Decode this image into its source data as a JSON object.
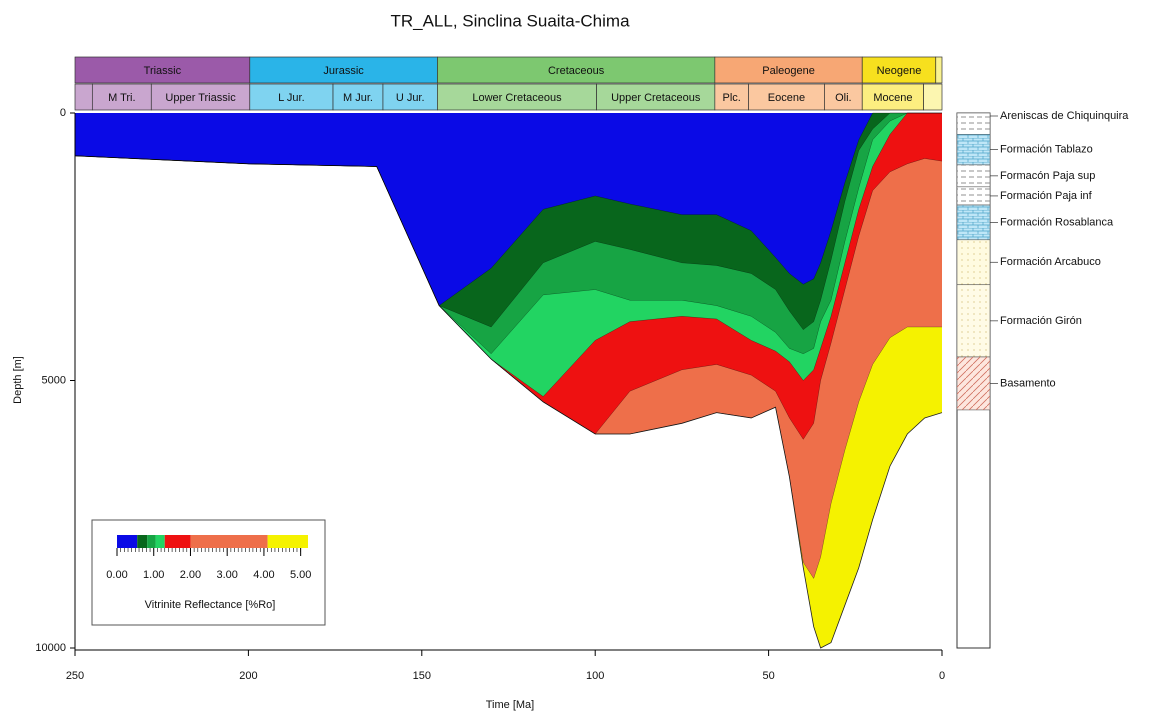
{
  "chart_data": {
    "type": "burial-history",
    "title": "TR_ALL, Sinclina Suaita-Chima",
    "xlabel": "Time [Ma]",
    "ylabel": "Depth [m]",
    "xlim": [
      250,
      0
    ],
    "ylim": [
      0,
      10000
    ],
    "xticks": [
      250,
      200,
      150,
      100,
      50,
      0
    ],
    "yticks": [
      0,
      5000,
      10000
    ],
    "x": [
      250,
      200,
      163,
      145,
      130,
      115,
      100,
      90,
      75,
      65,
      55,
      48,
      44,
      40,
      37,
      35,
      32,
      28,
      24,
      20,
      15,
      10,
      5,
      0
    ],
    "basement": [
      800,
      950,
      1000,
      3600,
      4600,
      5400,
      6000,
      6000,
      5800,
      5600,
      5700,
      5500,
      6800,
      8500,
      9600,
      10000,
      9900,
      9200,
      8500,
      7600,
      6600,
      6000,
      5700,
      5600
    ],
    "zones": [
      {
        "color": "#0a0ae6",
        "top": [
          0,
          0,
          0,
          0,
          0,
          0,
          0,
          0,
          0,
          0,
          0,
          0,
          0,
          0,
          0,
          0,
          0,
          0,
          0,
          0,
          0,
          0,
          0,
          0
        ]
      },
      {
        "color": "#08661c",
        "top": [
          800,
          950,
          1000,
          3600,
          2900,
          1800,
          1550,
          1700,
          1900,
          1900,
          2200,
          2700,
          3000,
          3200,
          3100,
          2800,
          2200,
          1300,
          500,
          0,
          0,
          0,
          0,
          0
        ]
      },
      {
        "color": "#17a444",
        "top": [
          800,
          950,
          1000,
          3600,
          4000,
          2800,
          2400,
          2550,
          2800,
          2850,
          3000,
          3300,
          3700,
          4050,
          3900,
          3500,
          2750,
          1650,
          700,
          300,
          0,
          0,
          0,
          0
        ]
      },
      {
        "color": "#22d462",
        "top": [
          800,
          950,
          1000,
          3600,
          4500,
          3400,
          3300,
          3500,
          3500,
          3600,
          3800,
          4100,
          4400,
          4500,
          4400,
          3900,
          3500,
          2400,
          1400,
          500,
          150,
          0,
          0,
          0
        ]
      },
      {
        "color": "#ee1111",
        "top": [
          800,
          950,
          1000,
          3600,
          4600,
          5300,
          4250,
          3900,
          3800,
          3850,
          4250,
          4450,
          4650,
          5000,
          4800,
          4400,
          3800,
          2800,
          1800,
          1000,
          400,
          0,
          0,
          0
        ]
      },
      {
        "color": "#ee6f4a",
        "top": [
          800,
          950,
          1000,
          3600,
          4600,
          5400,
          6000,
          5200,
          4800,
          4700,
          4900,
          5200,
          5700,
          6100,
          5800,
          5000,
          4300,
          3300,
          2300,
          1450,
          1100,
          950,
          850,
          900
        ]
      },
      {
        "color": "#f5f200",
        "top": [
          800,
          950,
          1000,
          3600,
          4600,
          5400,
          6000,
          6000,
          5800,
          5600,
          5700,
          5500,
          6800,
          8400,
          8700,
          8300,
          7300,
          6300,
          5400,
          4700,
          4200,
          4000,
          4000,
          4000
        ]
      }
    ],
    "colorbar": {
      "label": "Vitrinite Reflectance [%Ro]",
      "bins": [
        0,
        0.55,
        0.82,
        1.05,
        1.3,
        2.0,
        4.1,
        5.2
      ],
      "ticks": [
        {
          "value": 0,
          "label": "0.00"
        },
        {
          "value": 1,
          "label": "1.00"
        },
        {
          "value": 2,
          "label": "2.00"
        },
        {
          "value": 3,
          "label": "3.00"
        },
        {
          "value": 4,
          "label": "4.00"
        },
        {
          "value": 5,
          "label": "5.00"
        }
      ]
    },
    "timescale": {
      "periods": [
        {
          "name": "Triassic",
          "start": 250,
          "end": 199.6,
          "color": "#9b5aa9"
        },
        {
          "name": "Jurassic",
          "start": 199.6,
          "end": 145.5,
          "color": "#2ab4e8"
        },
        {
          "name": "Cretaceous",
          "start": 145.5,
          "end": 65.5,
          "color": "#7dc870"
        },
        {
          "name": "Paleogene",
          "start": 65.5,
          "end": 23,
          "color": "#f7a774"
        },
        {
          "name": "Neogene",
          "start": 23,
          "end": 1.8,
          "color": "#f7e01e"
        },
        {
          "name": null,
          "start": 1.8,
          "end": 0,
          "color": "#f9f290"
        }
      ],
      "epochs": [
        {
          "name": null,
          "start": 250,
          "end": 245,
          "color": "#c9a6cf"
        },
        {
          "name": "M Tri.",
          "start": 245,
          "end": 228,
          "color": "#c9a6cf"
        },
        {
          "name": "Upper Triassic",
          "start": 228,
          "end": 199.6,
          "color": "#c9a6cf"
        },
        {
          "name": "L Jur.",
          "start": 199.6,
          "end": 175.6,
          "color": "#7fd3f0"
        },
        {
          "name": "M Jur.",
          "start": 175.6,
          "end": 161.2,
          "color": "#7fd3f0"
        },
        {
          "name": "U Jur.",
          "start": 161.2,
          "end": 145.5,
          "color": "#7fd3f0"
        },
        {
          "name": "Lower Cretaceous",
          "start": 145.5,
          "end": 99.6,
          "color": "#a6d89a"
        },
        {
          "name": "Upper Cretaceous",
          "start": 99.6,
          "end": 65.5,
          "color": "#a6d89a"
        },
        {
          "name": "Plc.",
          "start": 65.5,
          "end": 55.8,
          "color": "#fbc8a0"
        },
        {
          "name": "Eocene",
          "start": 55.8,
          "end": 33.9,
          "color": "#fbc8a0"
        },
        {
          "name": "Oli.",
          "start": 33.9,
          "end": 23,
          "color": "#fbc8a0"
        },
        {
          "name": "Mocene",
          "start": 23,
          "end": 5.3,
          "color": "#fcee80"
        },
        {
          "name": null,
          "start": 5.3,
          "end": 0,
          "color": "#fcf6b0"
        }
      ]
    },
    "formations": [
      {
        "name": "Areniscas de Chiquinquira",
        "top": 0,
        "base": 400,
        "color": "#ffffff"
      },
      {
        "name": "Formación Tablazo",
        "top": 400,
        "base": 970,
        "color": "#bfe6f7"
      },
      {
        "name": "Formacón Paja sup",
        "top": 970,
        "base": 1380,
        "color": "#ffffff"
      },
      {
        "name": "Formación Paja inf",
        "top": 1380,
        "base": 1720,
        "color": "#ffffff"
      },
      {
        "name": "Formación Rosablanca",
        "top": 1720,
        "base": 2370,
        "color": "#bfe6f7"
      },
      {
        "name": "Formación Arcabuco",
        "top": 2370,
        "base": 3210,
        "color": "#fffbe0"
      },
      {
        "name": "Formación Girón",
        "top": 3210,
        "base": 4560,
        "color": "#fffbe6"
      },
      {
        "name": "Basamento",
        "top": 4560,
        "base": 5550,
        "color": "#fde6de"
      }
    ]
  }
}
